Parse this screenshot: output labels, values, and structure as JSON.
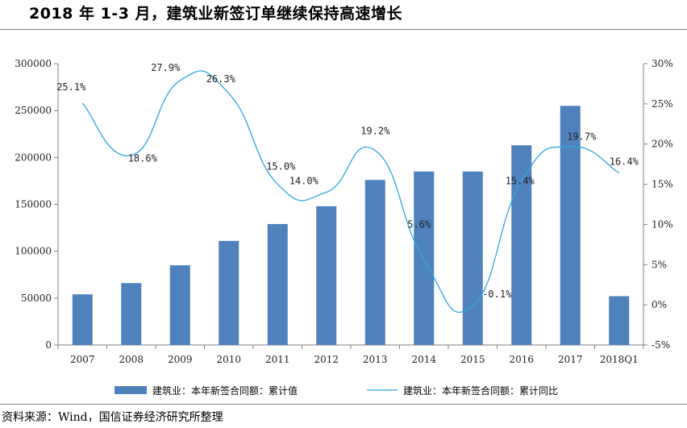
{
  "title": "2018 年 1-3 月，建筑业新签订单继续保持高速增长",
  "source": "资料来源：Wind，国信证券经济研究所整理",
  "colors": {
    "bar": "#4f81bd",
    "line": "#2ea6e0",
    "axis": "#808080"
  },
  "chart_data": {
    "type": "bar",
    "categories": [
      "2007",
      "2008",
      "2009",
      "2010",
      "2011",
      "2012",
      "2013",
      "2014",
      "2015",
      "2016",
      "2017",
      "2018Q1"
    ],
    "series": [
      {
        "name": "建筑业：本年新签合同额：累计值",
        "type": "bar",
        "axis": "left",
        "values": [
          54000,
          66000,
          85000,
          111000,
          129000,
          148000,
          176000,
          185000,
          185000,
          213000,
          255000,
          52000
        ]
      },
      {
        "name": "建筑业：本年新签合同额：累计同比",
        "type": "line",
        "axis": "right",
        "values": [
          25.1,
          18.6,
          27.9,
          26.3,
          15.0,
          14.0,
          19.2,
          5.6,
          -0.1,
          15.4,
          19.7,
          16.4
        ],
        "labels": [
          "25.1%",
          "18.6%",
          "27.9%",
          "26.3%",
          "15.0%",
          "14.0%",
          "19.2%",
          "5.6%",
          "-0.1%",
          "15.4%",
          "19.7%",
          "16.4%"
        ]
      }
    ],
    "y_left": {
      "min": 0,
      "max": 300000,
      "ticks": [
        "0",
        "50000",
        "100000",
        "150000",
        "200000",
        "250000",
        "300000"
      ]
    },
    "y_right": {
      "min": -5,
      "max": 30,
      "ticks": [
        "-5%",
        "0%",
        "5%",
        "10%",
        "15%",
        "20%",
        "25%",
        "30%"
      ]
    },
    "legend": [
      "建筑业：本年新签合同额：累计值",
      "建筑业：本年新签合同额：累计同比"
    ]
  }
}
